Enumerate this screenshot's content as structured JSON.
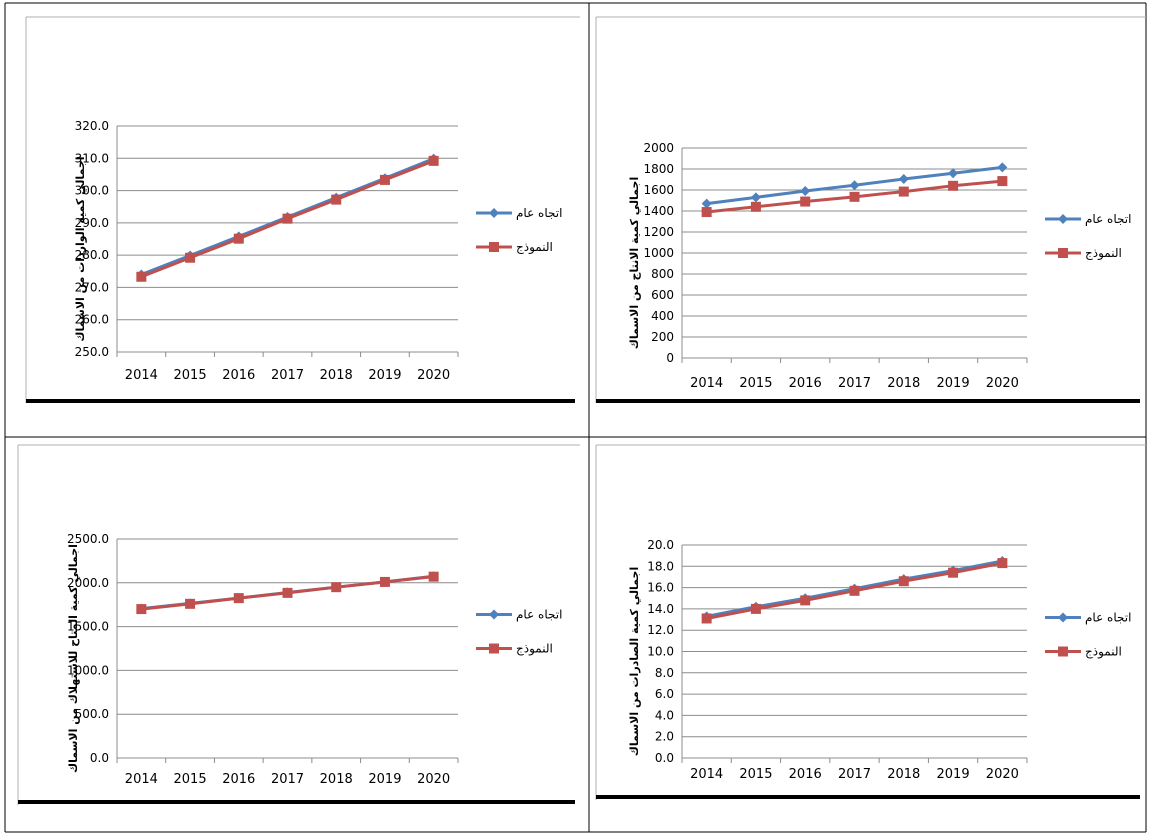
{
  "colors": {
    "general_trend": "#4F81BD",
    "model": "#C0504D",
    "gridline": "#8C8C8C",
    "cell_border": "#000000"
  },
  "legend": {
    "general_trend": "اتجاه عام",
    "model": "النموذج"
  },
  "chart_data": [
    {
      "type": "line",
      "position": "top-left",
      "ylabel": "اجمالي كمية الواردات من الاسماك",
      "categories": [
        "2014",
        "2015",
        "2016",
        "2017",
        "2018",
        "2019",
        "2020"
      ],
      "yticks": [
        "250.0",
        "260.0",
        "270.0",
        "280.0",
        "290.0",
        "300.0",
        "310.0",
        "320.0"
      ],
      "ylim": [
        250,
        320
      ],
      "grid": true,
      "legend_placement": "right",
      "series": [
        {
          "name": "اتجاه عام",
          "marker": "diamond",
          "values": [
            274.0,
            279.9,
            285.8,
            291.8,
            297.8,
            303.8,
            309.9
          ]
        },
        {
          "name": "النموذج",
          "marker": "square",
          "values": [
            273.3,
            279.2,
            285.1,
            291.3,
            297.2,
            303.3,
            309.2
          ]
        }
      ]
    },
    {
      "type": "line",
      "position": "top-right",
      "ylabel": "اجمالي كمية الانتاج من الاسماك",
      "categories": [
        "2014",
        "2015",
        "2016",
        "2017",
        "2018",
        "2019",
        "2020"
      ],
      "yticks": [
        "0",
        "200",
        "400",
        "600",
        "800",
        "1000",
        "1200",
        "1400",
        "1600",
        "1800",
        "2000"
      ],
      "ylim": [
        0,
        2000
      ],
      "grid": true,
      "legend_placement": "right",
      "series": [
        {
          "name": "اتجاه عام",
          "marker": "diamond",
          "values": [
            1470,
            1530,
            1590,
            1645,
            1705,
            1760,
            1815
          ]
        },
        {
          "name": "النموذج",
          "marker": "square",
          "values": [
            1390,
            1440,
            1490,
            1535,
            1585,
            1640,
            1685
          ]
        }
      ]
    },
    {
      "type": "line",
      "position": "bottom-left",
      "ylabel": "اجمالي كمية المتاح للاستهلاك من الاسماك",
      "categories": [
        "2014",
        "2015",
        "2016",
        "2017",
        "2018",
        "2019",
        "2020"
      ],
      "yticks": [
        "0.0",
        "500.0",
        "1000.0",
        "1500.0",
        "2000.0",
        "2500.0"
      ],
      "ylim": [
        0,
        2500
      ],
      "grid": true,
      "legend_placement": "right",
      "series": [
        {
          "name": "اتجاه عام",
          "marker": "diamond",
          "values": [
            1705,
            1765,
            1825,
            1890,
            1950,
            2010,
            2075
          ]
        },
        {
          "name": "النموذج",
          "marker": "square",
          "values": [
            1700,
            1760,
            1825,
            1885,
            1950,
            2010,
            2070
          ]
        }
      ]
    },
    {
      "type": "line",
      "position": "bottom-right",
      "ylabel": "اجمالي كمية الصادرات من الاسماك",
      "categories": [
        "2014",
        "2015",
        "2016",
        "2017",
        "2018",
        "2019",
        "2020"
      ],
      "yticks": [
        "0.0",
        "2.0",
        "4.0",
        "6.0",
        "8.0",
        "10.0",
        "12.0",
        "14.0",
        "16.0",
        "18.0",
        "20.0"
      ],
      "ylim": [
        0,
        20
      ],
      "grid": true,
      "legend_placement": "right",
      "series": [
        {
          "name": "اتجاه عام",
          "marker": "diamond",
          "values": [
            13.3,
            14.2,
            15.0,
            15.9,
            16.8,
            17.6,
            18.5
          ]
        },
        {
          "name": "النموذج",
          "marker": "square",
          "values": [
            13.1,
            14.0,
            14.8,
            15.7,
            16.6,
            17.4,
            18.3
          ]
        }
      ]
    }
  ]
}
